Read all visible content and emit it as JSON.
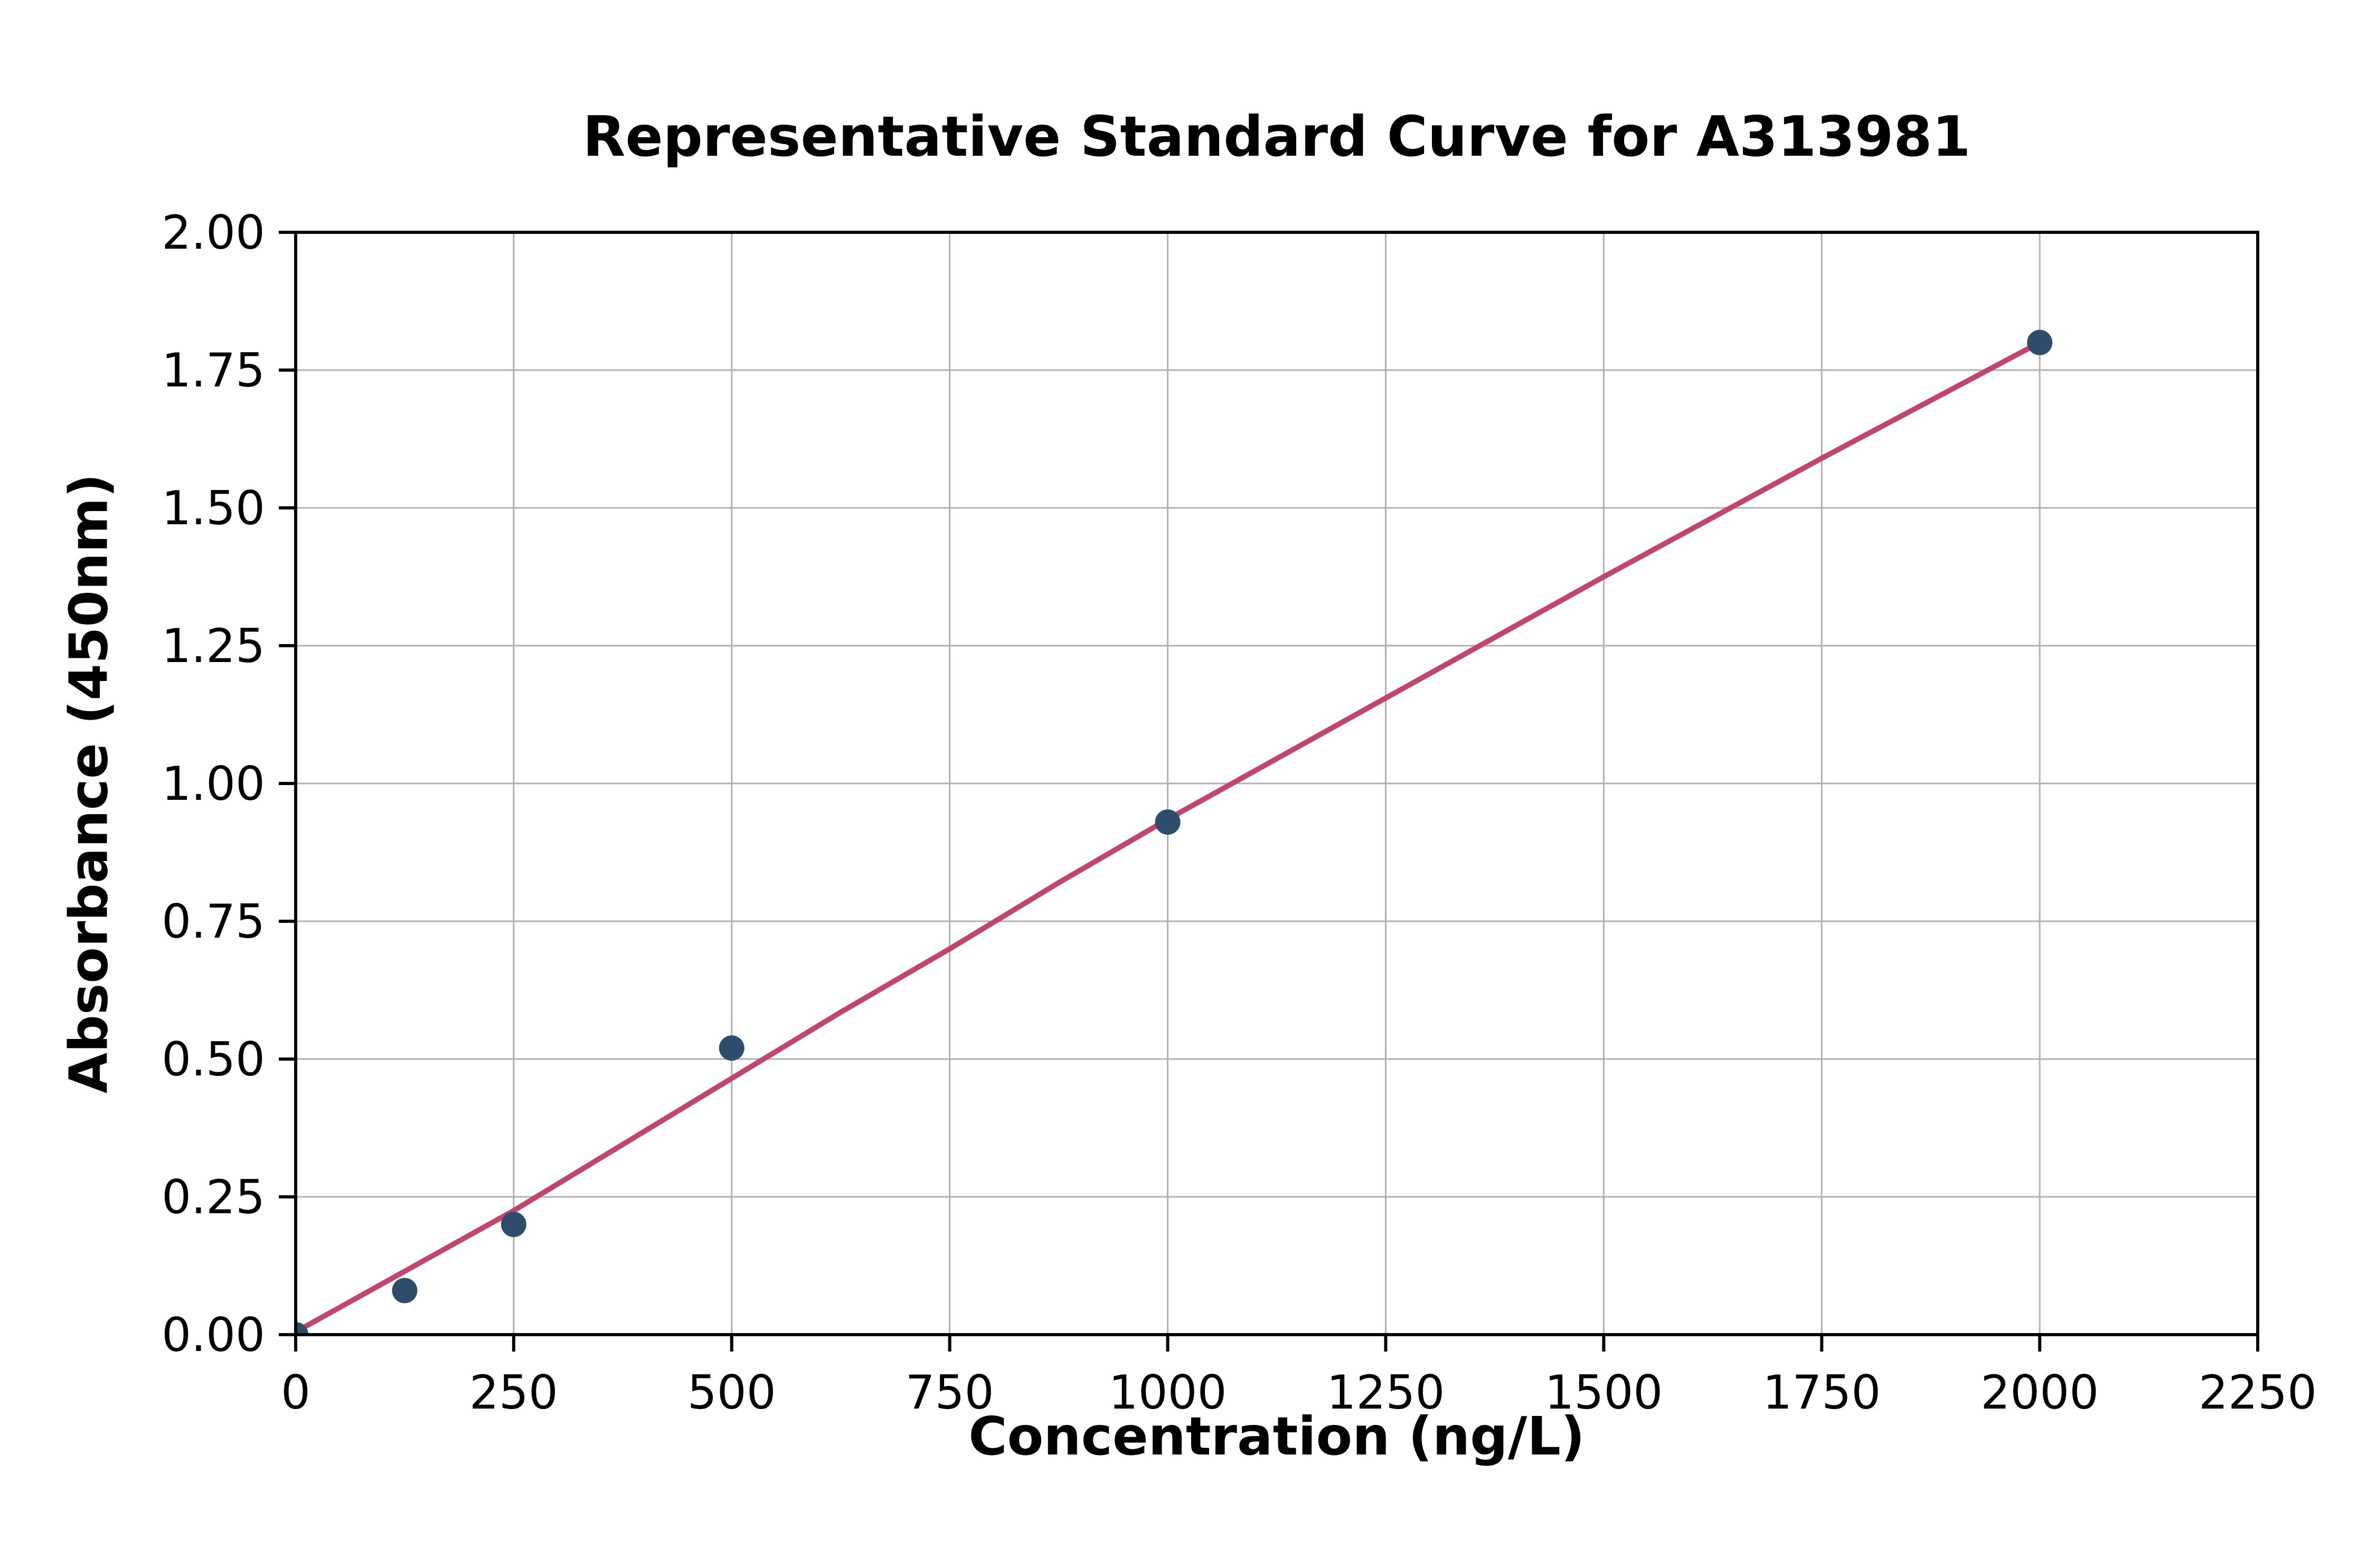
{
  "chart_data": {
    "type": "scatter",
    "title": "Representative Standard Curve for A313981",
    "xlabel": "Concentration (ng/L)",
    "ylabel": "Absorbance (450nm)",
    "xlim": [
      0,
      2250
    ],
    "ylim": [
      0,
      2.0
    ],
    "x_ticks": [
      0,
      250,
      500,
      750,
      1000,
      1250,
      1500,
      1750,
      2000,
      2250
    ],
    "x_tick_labels": [
      "0",
      "250",
      "500",
      "750",
      "1000",
      "1250",
      "1500",
      "1750",
      "2000",
      "2250"
    ],
    "y_ticks": [
      0,
      0.25,
      0.5,
      0.75,
      1.0,
      1.25,
      1.5,
      1.75,
      2.0
    ],
    "y_tick_labels": [
      "0.00",
      "0.25",
      "0.50",
      "0.75",
      "1.00",
      "1.25",
      "1.50",
      "1.75",
      "2.00"
    ],
    "grid": true,
    "legend": "none",
    "points": [
      {
        "x": 0,
        "y": 0.0
      },
      {
        "x": 125,
        "y": 0.08
      },
      {
        "x": 250,
        "y": 0.2
      },
      {
        "x": 500,
        "y": 0.52
      },
      {
        "x": 1000,
        "y": 0.93
      },
      {
        "x": 2000,
        "y": 1.8
      }
    ],
    "fit_line": [
      {
        "x": 0,
        "y": 0.005
      },
      {
        "x": 125,
        "y": 0.115
      },
      {
        "x": 250,
        "y": 0.225
      },
      {
        "x": 375,
        "y": 0.345
      },
      {
        "x": 500,
        "y": 0.465
      },
      {
        "x": 625,
        "y": 0.585
      },
      {
        "x": 750,
        "y": 0.7
      },
      {
        "x": 875,
        "y": 0.82
      },
      {
        "x": 1000,
        "y": 0.935
      },
      {
        "x": 1250,
        "y": 1.155
      },
      {
        "x": 1500,
        "y": 1.375
      },
      {
        "x": 1750,
        "y": 1.59
      },
      {
        "x": 2000,
        "y": 1.8
      }
    ],
    "colors": {
      "point": "#2e4d6d",
      "line": "#c2456f",
      "grid": "#b0b0b0",
      "axis": "#000000",
      "text": "#000000"
    }
  }
}
